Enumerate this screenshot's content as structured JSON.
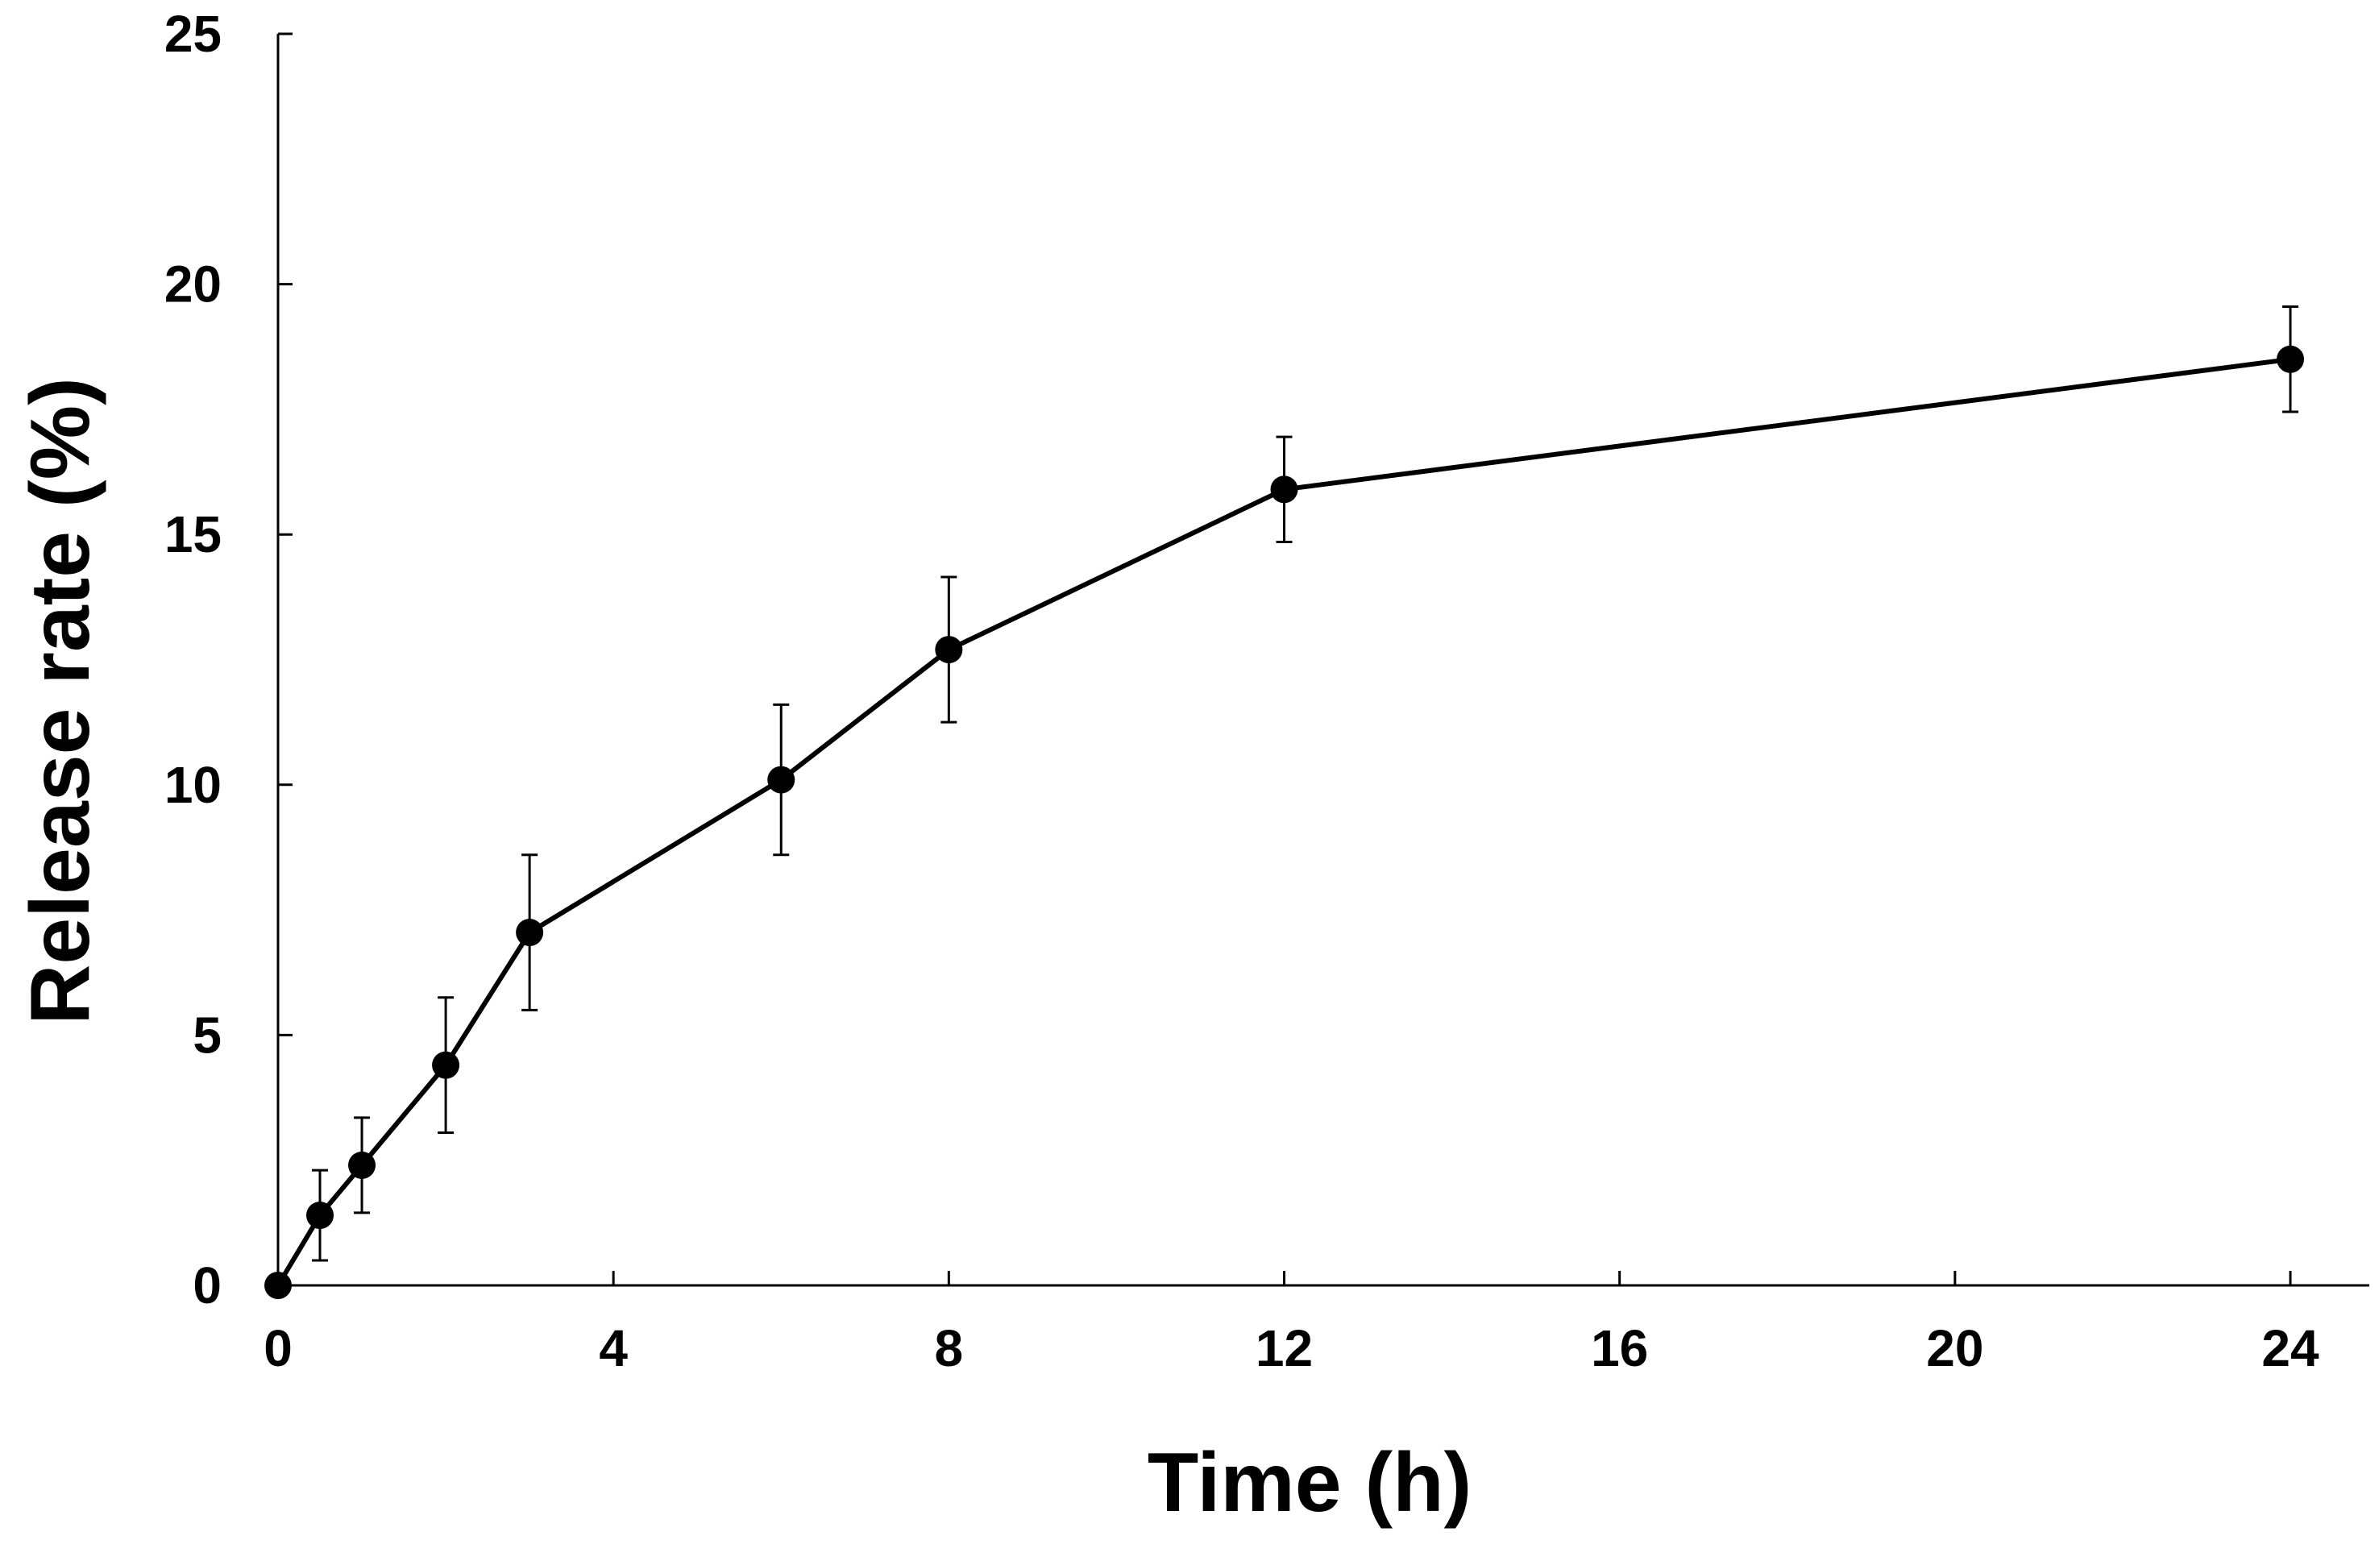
{
  "chart_data": {
    "type": "line",
    "title": "",
    "xlabel": "Time (h)",
    "ylabel": "Release rate (%)",
    "xlim": [
      0,
      24
    ],
    "ylim": [
      0,
      25
    ],
    "xticks": [
      0,
      4,
      8,
      12,
      16,
      20,
      24
    ],
    "yticks": [
      0,
      5,
      10,
      15,
      20,
      25
    ],
    "xtick_labels": [
      "0",
      "4",
      "8",
      "12",
      "16",
      "20",
      "24"
    ],
    "ytick_labels": [
      "0",
      "5",
      "10",
      "15",
      "20",
      "25"
    ],
    "grid": false,
    "legend": "none",
    "series": [
      {
        "name": "Release rate",
        "color": "#000000",
        "marker": "circle",
        "x": [
          0,
          0.5,
          1,
          2,
          3,
          6,
          8,
          12,
          24
        ],
        "y": [
          0,
          1.4,
          2.4,
          4.4,
          7.05,
          10.1,
          12.7,
          15.9,
          18.5
        ],
        "error": [
          0,
          0.9,
          0.95,
          1.35,
          1.55,
          1.5,
          1.45,
          1.05,
          1.05
        ]
      }
    ]
  }
}
